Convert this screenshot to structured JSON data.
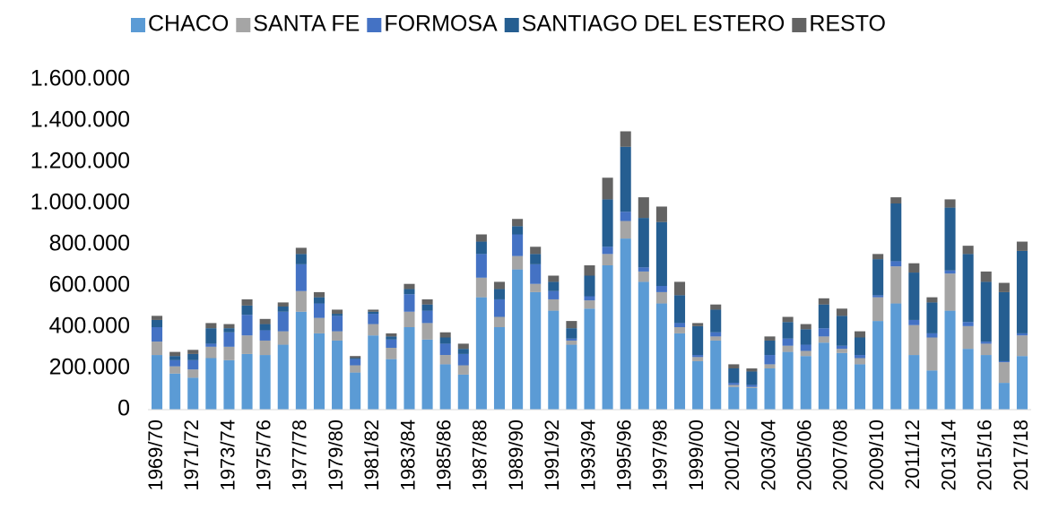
{
  "chart_data": {
    "type": "stacked_bar",
    "categories": [
      "1969/70",
      null,
      "1971/72",
      null,
      "1973/74",
      null,
      "1975/76",
      null,
      "1977/78",
      null,
      "1979/80",
      null,
      "1981/82",
      null,
      "1983/84",
      null,
      "1985/86",
      null,
      "1987/88",
      null,
      "1989/90",
      null,
      "1991/92",
      null,
      "1993/94",
      null,
      "1995/96",
      null,
      "1997/98",
      null,
      "1999/00",
      null,
      "2001/02",
      null,
      "2003/04",
      null,
      "2005/06",
      null,
      "2007/08",
      null,
      "2009/10",
      null,
      "2011/12",
      null,
      "2013/14",
      null,
      "2015/16",
      null,
      "2017/18"
    ],
    "series": [
      {
        "name": "CHACO",
        "color": "#5b9bd5",
        "values": [
          265000,
          175000,
          155000,
          250000,
          240000,
          270000,
          265000,
          315000,
          475000,
          370000,
          335000,
          180000,
          360000,
          245000,
          400000,
          340000,
          220000,
          170000,
          545000,
          400000,
          680000,
          570000,
          480000,
          315000,
          490000,
          700000,
          830000,
          620000,
          515000,
          370000,
          235000,
          335000,
          110000,
          105000,
          200000,
          280000,
          260000,
          325000,
          275000,
          220000,
          430000,
          515000,
          265000,
          190000,
          480000,
          295000,
          265000,
          130000,
          260000
        ]
      },
      {
        "name": "SANTA FE",
        "color": "#a5a5a5",
        "values": [
          65000,
          35000,
          40000,
          55000,
          65000,
          90000,
          70000,
          65000,
          100000,
          75000,
          45000,
          35000,
          55000,
          55000,
          75000,
          80000,
          45000,
          45000,
          95000,
          50000,
          65000,
          40000,
          55000,
          20000,
          40000,
          55000,
          85000,
          50000,
          55000,
          30000,
          20000,
          20000,
          10000,
          5000,
          20000,
          30000,
          25000,
          30000,
          20000,
          30000,
          115000,
          180000,
          145000,
          160000,
          180000,
          110000,
          55000,
          100000,
          100000
        ]
      },
      {
        "name": "FORMOSA",
        "color": "#4472c4",
        "values": [
          70000,
          30000,
          45000,
          15000,
          70000,
          100000,
          50000,
          95000,
          130000,
          70000,
          75000,
          30000,
          50000,
          40000,
          85000,
          60000,
          55000,
          55000,
          115000,
          85000,
          105000,
          95000,
          40000,
          10000,
          20000,
          35000,
          45000,
          20000,
          30000,
          20000,
          10000,
          20000,
          10000,
          10000,
          45000,
          35000,
          30000,
          40000,
          15000,
          15000,
          10000,
          25000,
          25000,
          20000,
          15000,
          20000,
          10000,
          5000,
          10000
        ]
      },
      {
        "name": "SANTIAGO DEL ESTERO",
        "color": "#255e91",
        "values": [
          35000,
          20000,
          30000,
          75000,
          20000,
          45000,
          30000,
          25000,
          50000,
          30000,
          10000,
          5000,
          10000,
          15000,
          25000,
          30000,
          30000,
          25000,
          60000,
          50000,
          40000,
          50000,
          45000,
          50000,
          100000,
          230000,
          315000,
          240000,
          310000,
          135000,
          140000,
          110000,
          70000,
          65000,
          70000,
          80000,
          75000,
          115000,
          145000,
          85000,
          175000,
          280000,
          230000,
          150000,
          305000,
          330000,
          290000,
          335000,
          400000
        ]
      },
      {
        "name": "RESTO",
        "color": "#636363",
        "values": [
          20000,
          20000,
          20000,
          25000,
          20000,
          30000,
          25000,
          20000,
          30000,
          25000,
          20000,
          10000,
          10000,
          15000,
          25000,
          25000,
          25000,
          25000,
          35000,
          35000,
          35000,
          35000,
          30000,
          35000,
          50000,
          105000,
          75000,
          100000,
          75000,
          65000,
          15000,
          25000,
          20000,
          15000,
          20000,
          25000,
          25000,
          30000,
          35000,
          30000,
          25000,
          30000,
          45000,
          25000,
          40000,
          40000,
          50000,
          45000,
          45000
        ]
      }
    ],
    "ylim": [
      0,
      1600000
    ],
    "yticks": [
      0,
      {
        "value": 200000,
        "label": "200.000"
      },
      {
        "value": 400000,
        "label": "400.000"
      },
      {
        "value": 600000,
        "label": "600.000"
      },
      {
        "value": 800000,
        "label": "800.000"
      },
      {
        "value": 1000000,
        "label": "1.000.000"
      },
      {
        "value": 1200000,
        "label": "1.200.000"
      },
      {
        "value": 1400000,
        "label": "1.400.000"
      },
      {
        "value": 1600000,
        "label": "1.600.000"
      }
    ],
    "grid": false,
    "legend": "top"
  }
}
